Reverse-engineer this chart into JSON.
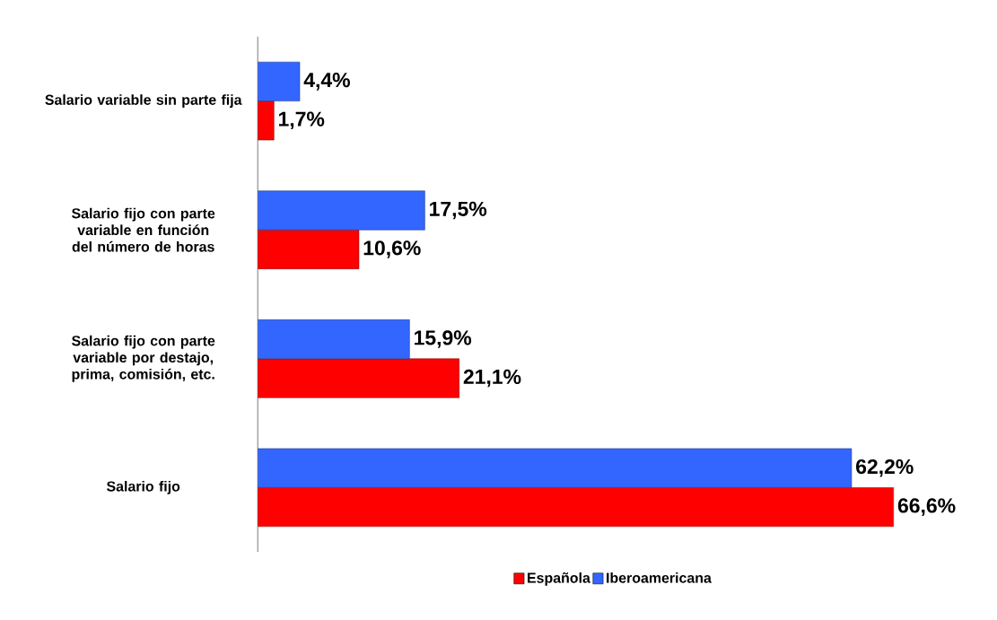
{
  "chart_data": {
    "type": "bar",
    "orientation": "horizontal",
    "categories": [
      "Salario variable sin parte fija",
      "Salario fijo con parte variable en función del número de horas",
      "Salario fijo con parte variable por destajo, prima, comisión, etc.",
      "Salario fijo"
    ],
    "series": [
      {
        "name": "Española",
        "color": "#ff0000",
        "values": [
          1.7,
          10.6,
          21.1,
          66.6
        ],
        "value_labels": [
          "1,7%",
          "10,6%",
          "21,1%",
          "66,6%"
        ]
      },
      {
        "name": "Iberoamericana",
        "color": "#3366ff",
        "values": [
          4.4,
          17.5,
          15.9,
          62.2
        ],
        "value_labels": [
          "4,4%",
          "17,5%",
          "15,9%",
          "62,2%"
        ]
      }
    ],
    "legend": "bottom"
  }
}
